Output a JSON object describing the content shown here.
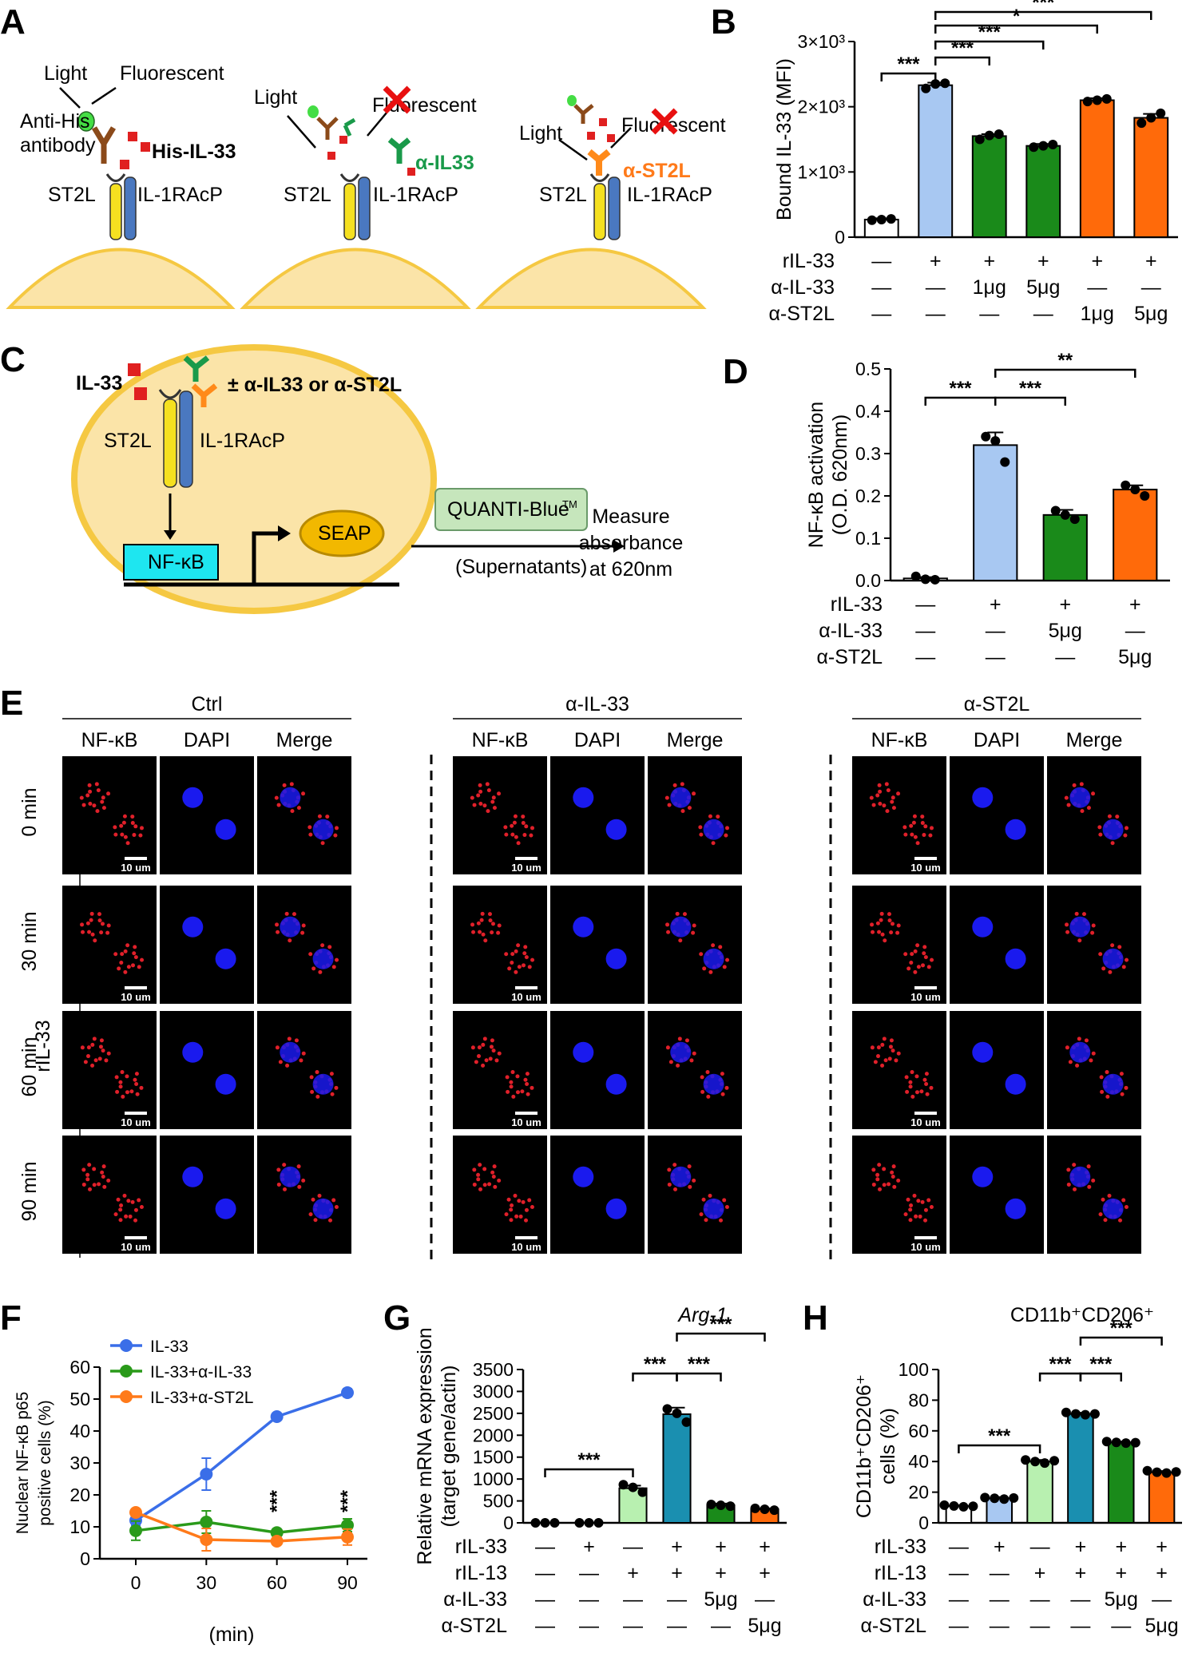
{
  "panel_letters": [
    "A",
    "B",
    "C",
    "D",
    "E",
    "F",
    "G",
    "H"
  ],
  "colors": {
    "white": "#ffffff",
    "ctrl_il33": "#a8c8f2",
    "anti_il33": "#1a8a1a",
    "anti_st2l": "#ff6a0a",
    "il13": "#b8f0b0",
    "il13_il33": "#1a8fb0",
    "membrane": "#f5c842",
    "cell_fill": "#fbe4a8",
    "nfkb_box": "#1ee6f0",
    "seap": "#f2b800",
    "quanti": "#c6e6bc",
    "red_x": "#e81010",
    "line_il33": "#3a6ee8",
    "line_ail33": "#2a9a1a",
    "line_ast2l": "#ff7a1a"
  },
  "panel_a": {
    "light": "Light",
    "fluorescent": "Fluorescent",
    "fluorescent_short": "Fluorescent",
    "anti_his": "Anti-His",
    "antibody": "antibody",
    "his_il33": "His-IL-33",
    "a_il33": "α-IL33",
    "a_st2l": "α-ST2L",
    "st2l": "ST2L",
    "il1racp": "IL-1RAcP",
    "icons": [
      "cell-membrane-icon",
      "receptor-icon",
      "antibody-icon",
      "cross-icon"
    ]
  },
  "panel_c": {
    "il33": "IL-33",
    "plus_minus": "± α-IL33 or α-ST2L",
    "st2l": "ST2L",
    "il1racp": "IL-1RAcP",
    "nfkb": "NF-κB",
    "seap": "SEAP",
    "quanti": "QUANTI-Blue",
    "tm": "TM",
    "supernatants": "(Supernatants)",
    "measure": [
      "Measure",
      "absorbance",
      "at 620nm"
    ]
  },
  "panel_e": {
    "groups": [
      "Ctrl",
      "α-IL-33",
      "α-ST2L"
    ],
    "channels": [
      "NF-κB",
      "DAPI",
      "Merge"
    ],
    "row_labels": [
      "0 min",
      "30 min",
      "60 min",
      "90 min"
    ],
    "side_label": "rIL-33",
    "scale_bar": "10 um"
  },
  "chart_data": [
    {
      "panel": "B",
      "type": "bar",
      "ylabel": "Bound IL-33 (MFI)",
      "ylim": [
        0,
        3000
      ],
      "yticks": [
        "0",
        "1×10³",
        "2×10³",
        "3×10³"
      ],
      "values": [
        270,
        2330,
        1550,
        1400,
        2100,
        1830
      ],
      "errors": [
        20,
        40,
        30,
        30,
        30,
        60
      ],
      "points": [
        [
          260,
          270,
          280
        ],
        [
          2280,
          2350,
          2360
        ],
        [
          1500,
          1560,
          1580
        ],
        [
          1380,
          1400,
          1420
        ],
        [
          2080,
          2100,
          2120
        ],
        [
          1750,
          1830,
          1900
        ]
      ],
      "colors": [
        "#ffffff",
        "#a8c8f2",
        "#1a8a1a",
        "#1a8a1a",
        "#ff6a0a",
        "#ff6a0a"
      ],
      "conditions": [
        {
          "label": "rIL-33",
          "values": [
            "—",
            "+",
            "+",
            "+",
            "+",
            "+"
          ]
        },
        {
          "label": "α-IL-33",
          "values": [
            "—",
            "—",
            "1μg",
            "5μg",
            "—",
            "—"
          ]
        },
        {
          "label": "α-ST2L",
          "values": [
            "—",
            "—",
            "—",
            "—",
            "1μg",
            "5μg"
          ]
        }
      ],
      "significance": [
        {
          "from": 0,
          "to": 1,
          "label": "***"
        },
        {
          "from": 1,
          "to": 2,
          "label": "***"
        },
        {
          "from": 1,
          "to": 3,
          "label": "***"
        },
        {
          "from": 1,
          "to": 4,
          "label": "*"
        },
        {
          "from": 1,
          "to": 5,
          "label": "***"
        }
      ]
    },
    {
      "panel": "D",
      "type": "bar",
      "ylabel": [
        "NF-κB activation",
        "(O.D. 620nm)"
      ],
      "ylim": [
        0,
        0.5
      ],
      "yticks": [
        "0.0",
        "0.1",
        "0.2",
        "0.3",
        "0.4",
        "0.5"
      ],
      "values": [
        0.005,
        0.32,
        0.155,
        0.215
      ],
      "errors": [
        0.003,
        0.03,
        0.012,
        0.01
      ],
      "points": [
        [
          0.01,
          0.003,
          0.002
        ],
        [
          0.34,
          0.33,
          0.28
        ],
        [
          0.165,
          0.155,
          0.145
        ],
        [
          0.225,
          0.215,
          0.2
        ]
      ],
      "colors": [
        "#ffffff",
        "#a8c8f2",
        "#1a8a1a",
        "#ff6a0a"
      ],
      "conditions": [
        {
          "label": "rIL-33",
          "values": [
            "—",
            "+",
            "+",
            "+"
          ]
        },
        {
          "label": "α-IL-33",
          "values": [
            "—",
            "—",
            "5μg",
            "—"
          ]
        },
        {
          "label": "α-ST2L",
          "values": [
            "—",
            "—",
            "—",
            "5μg"
          ]
        }
      ],
      "significance": [
        {
          "from": 0,
          "to": 1,
          "label": "***"
        },
        {
          "from": 1,
          "to": 2,
          "label": "***"
        },
        {
          "from": 1,
          "to": 3,
          "label": "**"
        }
      ]
    },
    {
      "panel": "F",
      "type": "line",
      "xlabel": "(min)",
      "ylabel": [
        "Nuclear NF-κB p65",
        "positive cells (%)"
      ],
      "x": [
        0,
        30,
        60,
        90
      ],
      "ylim": [
        0,
        60
      ],
      "yticks": [
        "0",
        "10",
        "20",
        "30",
        "40",
        "50",
        "60"
      ],
      "series": [
        {
          "name": "IL-33",
          "values": [
            12,
            26.5,
            44.5,
            52
          ],
          "errors": [
            1.5,
            5,
            1,
            1.2
          ],
          "color": "#3a6ee8"
        },
        {
          "name": "IL-33+α-IL-33",
          "values": [
            8.8,
            11.5,
            8.2,
            10.5
          ],
          "errors": [
            3,
            3.5,
            0.5,
            2
          ],
          "color": "#2a9a1a"
        },
        {
          "name": "IL-33+α-ST2L",
          "values": [
            14.5,
            6,
            5.5,
            6.8
          ],
          "errors": [
            0.5,
            3.5,
            0.3,
            2.5
          ],
          "color": "#ff7a1a"
        }
      ],
      "annotations": [
        {
          "x": 60,
          "label": "***"
        },
        {
          "x": 90,
          "label": "***"
        }
      ]
    },
    {
      "panel": "G",
      "type": "bar",
      "title": "Arg-1",
      "ylabel": [
        "Relative mRNA expression",
        "(target gene/actin)"
      ],
      "ylim": [
        0,
        3500
      ],
      "yticks": [
        "0",
        "500",
        "1000",
        "1500",
        "2000",
        "2500",
        "3000",
        "3500"
      ],
      "values": [
        0,
        0,
        790,
        2480,
        400,
        310
      ],
      "errors": [
        0,
        0,
        60,
        150,
        40,
        20
      ],
      "points": [
        [
          0,
          0,
          0
        ],
        [
          0,
          0,
          0
        ],
        [
          870,
          810,
          700
        ],
        [
          2600,
          2500,
          2300
        ],
        [
          420,
          400,
          380
        ],
        [
          330,
          310,
          290
        ]
      ],
      "colors": [
        "#ffffff",
        "#ffffff",
        "#b8f0b0",
        "#1a8fb0",
        "#1a8a1a",
        "#ff6a0a"
      ],
      "conditions": [
        {
          "label": "rIL-33",
          "values": [
            "—",
            "+",
            "—",
            "+",
            "+",
            "+"
          ]
        },
        {
          "label": "rIL-13",
          "values": [
            "—",
            "—",
            "+",
            "+",
            "+",
            "+"
          ]
        },
        {
          "label": "α-IL-33",
          "values": [
            "—",
            "—",
            "—",
            "—",
            "5μg",
            "—"
          ]
        },
        {
          "label": "α-ST2L",
          "values": [
            "—",
            "—",
            "—",
            "—",
            "—",
            "5μg"
          ]
        }
      ],
      "significance": [
        {
          "from": 0,
          "to": 2,
          "label": "***"
        },
        {
          "from": 2,
          "to": 3,
          "label": "***"
        },
        {
          "from": 3,
          "to": 4,
          "label": "***"
        },
        {
          "from": 3,
          "to": 5,
          "label": "***"
        }
      ]
    },
    {
      "panel": "H",
      "type": "bar",
      "title": "CD11b⁺CD206⁺",
      "ylabel": [
        "CD11b⁺CD206⁺",
        "cells (%)"
      ],
      "ylim": [
        0,
        100
      ],
      "yticks": [
        "0",
        "20",
        "40",
        "60",
        "80",
        "100"
      ],
      "values": [
        11,
        16,
        40,
        71,
        52.5,
        33
      ],
      "errors": [
        0.5,
        0.8,
        1,
        0.8,
        0.5,
        0.8
      ],
      "points": [
        [
          11.5,
          11,
          10.5,
          10.8
        ],
        [
          16.5,
          16,
          15.5,
          16.2
        ],
        [
          41,
          40,
          39,
          40.5
        ],
        [
          72,
          71,
          70.5,
          71
        ],
        [
          53,
          52.5,
          52,
          52.3
        ],
        [
          34,
          33,
          32.5,
          33.2
        ]
      ],
      "colors": [
        "#ffffff",
        "#a8c8f2",
        "#b8f0b0",
        "#1a8fb0",
        "#1a8a1a",
        "#ff6a0a"
      ],
      "conditions": [
        {
          "label": "rIL-33",
          "values": [
            "—",
            "+",
            "—",
            "+",
            "+",
            "+"
          ]
        },
        {
          "label": "rIL-13",
          "values": [
            "—",
            "—",
            "+",
            "+",
            "+",
            "+"
          ]
        },
        {
          "label": "α-IL-33",
          "values": [
            "—",
            "—",
            "—",
            "—",
            "5μg",
            "—"
          ]
        },
        {
          "label": "α-ST2L",
          "values": [
            "—",
            "—",
            "—",
            "—",
            "—",
            "5μg"
          ]
        }
      ],
      "significance": [
        {
          "from": 0,
          "to": 2,
          "label": "***"
        },
        {
          "from": 2,
          "to": 3,
          "label": "***"
        },
        {
          "from": 3,
          "to": 4,
          "label": "***"
        },
        {
          "from": 3,
          "to": 5,
          "label": "***"
        }
      ]
    }
  ]
}
